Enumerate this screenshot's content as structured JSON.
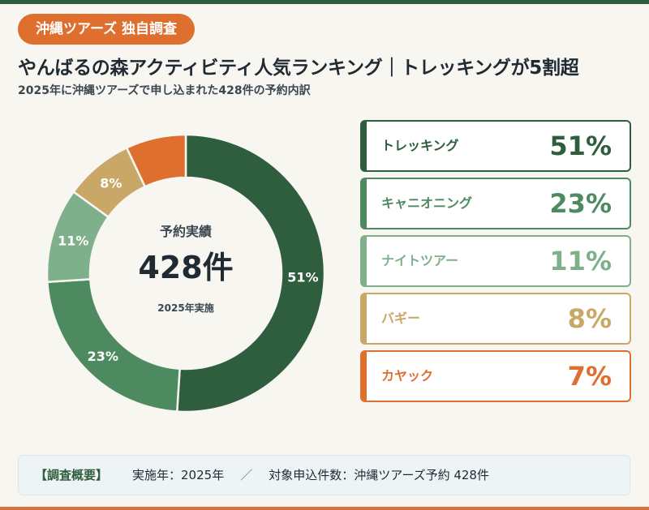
{
  "badge": "沖縄ツアーズ 独自調査",
  "title": "やんばるの森アクティビティ人気ランキング｜トレッキングが5割超",
  "subtitle": "2025年に沖縄ツアーズで申し込まれた428件の予約内訳",
  "center": {
    "label": "予約実績",
    "value": "428件",
    "sub": "2025年実施"
  },
  "chart_data": {
    "type": "pie",
    "categories": [
      "トレッキング",
      "キャニオニング",
      "ナイトツアー",
      "バギー",
      "カヤック"
    ],
    "values": [
      51,
      23,
      11,
      8,
      7
    ],
    "value_labels": [
      "51%",
      "23%",
      "11%",
      "8%",
      "7%"
    ],
    "colors": [
      "#2e5e3e",
      "#4e8a60",
      "#7fb08c",
      "#c9a867",
      "#df6f2f"
    ],
    "total": 428,
    "legend_position": "right"
  },
  "summary": {
    "head": "【調査概要】",
    "year": "実施年：2025年",
    "separator": "／",
    "count": "対象申込件数：沖縄ツアーズ予約 428件"
  }
}
